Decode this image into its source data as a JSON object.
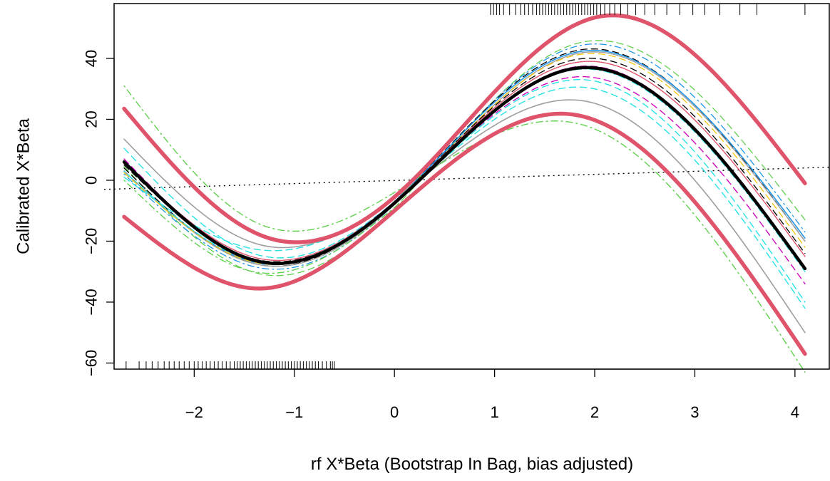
{
  "chart_data": {
    "type": "line",
    "title": "",
    "xlabel": "rf X*Beta (Bootstrap In Bag, bias adjusted)",
    "ylabel": "Calibrated X*Beta",
    "xlim": [
      -2.8,
      4.35
    ],
    "ylim": [
      -62,
      58
    ],
    "xticks": [
      -2,
      -1,
      0,
      1,
      2,
      3,
      4
    ],
    "yticks": [
      -60,
      -40,
      -20,
      0,
      20,
      40
    ],
    "xtick_labels": [
      "−2",
      "−1",
      "0",
      "1",
      "2",
      "3",
      "4"
    ],
    "ytick_labels": [
      "−60",
      "−40",
      "−20",
      "0",
      "20",
      "40"
    ],
    "grid": false,
    "legend": "none",
    "reference_line": {
      "style": "dotted",
      "color": "#000000",
      "x": [
        -2.9,
        4.35
      ],
      "y": [
        -3,
        4.3
      ]
    },
    "series": [
      {
        "style": "dashed",
        "color": "#61D04F",
        "width": 1.3,
        "x": [
          -2.7,
          -1.3,
          0,
          1.9,
          4.1
        ],
        "y": [
          4.5,
          -31,
          -9,
          45.5,
          -13
        ]
      },
      {
        "style": "dashdot",
        "color": "#2297E6",
        "width": 1.3,
        "x": [
          -2.7,
          -1.3,
          0,
          1.9,
          4.1
        ],
        "y": [
          2,
          -29,
          -8,
          44.5,
          -17
        ]
      },
      {
        "style": "dashed",
        "color": "#000000",
        "width": 1.3,
        "x": [
          -2.7,
          -1.3,
          0,
          1.9,
          4.1
        ],
        "y": [
          4,
          -28,
          -7,
          43,
          -20
        ]
      },
      {
        "style": "solid",
        "color": "#2297E6",
        "width": 1.6,
        "x": [
          -2.7,
          -1.3,
          0,
          1.9,
          4.1
        ],
        "y": [
          3,
          -27.5,
          -7,
          42.5,
          -19
        ]
      },
      {
        "style": "solid",
        "color": "#9E9E9E",
        "width": 1.4,
        "x": [
          -2.7,
          -1.3,
          0,
          1.9,
          4.1
        ],
        "y": [
          3,
          -28,
          -8,
          42,
          -20
        ]
      },
      {
        "style": "dashed",
        "color": "#F5C710",
        "width": 1.3,
        "x": [
          -2.7,
          -1.3,
          0,
          1.9,
          4.1
        ],
        "y": [
          2.5,
          -27.5,
          -7.5,
          41.5,
          -22
        ]
      },
      {
        "style": "dashed",
        "color": "#000000",
        "width": 1.3,
        "x": [
          -2.7,
          -1.3,
          0,
          1.9,
          4.1
        ],
        "y": [
          5,
          -26.5,
          -7,
          40,
          -24
        ]
      },
      {
        "style": "solid",
        "color": "#DF536B",
        "width": 1.4,
        "x": [
          -2.7,
          -1.3,
          0,
          1.9,
          4.1
        ],
        "y": [
          6,
          -26,
          -7,
          39,
          -25
        ]
      },
      {
        "style": "dashed",
        "color": "#CD0BBC",
        "width": 1.4,
        "x": [
          -2.7,
          -1.3,
          0,
          1.9,
          4.1
        ],
        "y": [
          5.5,
          -27,
          -7.5,
          37.5,
          -29
        ]
      },
      {
        "style": "dashdot",
        "color": "#28E2E5",
        "width": 1.3,
        "x": [
          -2.7,
          -1.3,
          0,
          1.9,
          4.1
        ],
        "y": [
          3,
          -27,
          -7,
          36.5,
          -30
        ]
      },
      {
        "style": "dashed",
        "color": "#28E2E5",
        "width": 1.4,
        "x": [
          -2.7,
          -1.3,
          0,
          1.9,
          4.1
        ],
        "y": [
          10.5,
          -25,
          -7,
          33,
          -40
        ]
      },
      {
        "style": "dashed",
        "color": "#28E2E5",
        "width": 1.4,
        "x": [
          -2.7,
          -1.3,
          0,
          1.9,
          4.1
        ],
        "y": [
          1,
          -23,
          -6,
          30.5,
          -42
        ]
      },
      {
        "style": "dashed",
        "color": "#CD0BBC",
        "width": 1.4,
        "x": [
          -2.7,
          -1.3,
          0,
          1.9,
          4.1
        ],
        "y": [
          7,
          -27,
          -7,
          34,
          -34
        ]
      },
      {
        "style": "solid",
        "color": "#9E9E9E",
        "width": 1.6,
        "x": [
          -2.7,
          -1.3,
          0,
          1.9,
          4.1
        ],
        "y": [
          13.5,
          -21.5,
          -6,
          26,
          -50
        ]
      },
      {
        "style": "dashdot",
        "color": "#61D04F",
        "width": 1.4,
        "x": [
          -2.7,
          -1.3,
          0,
          1.9,
          4.1
        ],
        "y": [
          31,
          -15,
          -4,
          18,
          -63
        ]
      },
      {
        "style": "dashdot",
        "color": "#61D04F",
        "width": 1.4,
        "x": [
          -2.7,
          -1.3,
          0,
          1.9,
          4.1
        ],
        "y": [
          0,
          -30.5,
          -9,
          21,
          -57
        ]
      },
      {
        "style": "solid",
        "color": "#000000",
        "width": 4.5,
        "x": [
          -2.7,
          -1.3,
          0,
          1.9,
          4.1
        ],
        "y": [
          6,
          -27,
          -7.5,
          37,
          -29
        ]
      },
      {
        "style": "solid",
        "color": "#DF536B",
        "width": 5.5,
        "x": [
          -2.7,
          -1.3,
          0,
          2.1,
          4.1
        ],
        "y": [
          23.5,
          -18.5,
          -5.5,
          54,
          -1
        ]
      },
      {
        "style": "solid",
        "color": "#DF536B",
        "width": 5.5,
        "x": [
          -2.7,
          -1.3,
          0,
          1.8,
          4.1
        ],
        "y": [
          -12,
          -35.5,
          -10,
          21.5,
          -57
        ]
      }
    ],
    "rug_bottom": [
      -2.68,
      -2.55,
      -2.48,
      -2.42,
      -2.36,
      -2.3,
      -2.25,
      -2.2,
      -2.15,
      -2.1,
      -2.05,
      -2.0,
      -1.96,
      -1.92,
      -1.88,
      -1.84,
      -1.8,
      -1.76,
      -1.72,
      -1.68,
      -1.64,
      -1.6,
      -1.57,
      -1.54,
      -1.51,
      -1.48,
      -1.45,
      -1.42,
      -1.39,
      -1.36,
      -1.33,
      -1.3,
      -1.27,
      -1.24,
      -1.21,
      -1.18,
      -1.15,
      -1.12,
      -1.09,
      -1.06,
      -1.03,
      -1.0,
      -0.97,
      -0.94,
      -0.91,
      -0.88,
      -0.85,
      -0.82,
      -0.79,
      -0.76,
      -0.72,
      -0.68,
      -0.64,
      -0.6,
      -0.62
    ],
    "rug_top": [
      0.96,
      0.99,
      1.02,
      1.05,
      1.09,
      1.15,
      1.21,
      1.26,
      1.3,
      1.34,
      1.38,
      1.42,
      1.45,
      1.48,
      1.51,
      1.54,
      1.57,
      1.6,
      1.63,
      1.66,
      1.69,
      1.72,
      1.75,
      1.78,
      1.81,
      1.84,
      1.87,
      1.9,
      1.93,
      1.96,
      1.99,
      2.02,
      2.06,
      2.1,
      2.15,
      2.2,
      2.26,
      2.33,
      2.41,
      2.5,
      2.6,
      2.72,
      2.85,
      2.98,
      3.1,
      3.25,
      3.45,
      3.62,
      4.1
    ]
  }
}
